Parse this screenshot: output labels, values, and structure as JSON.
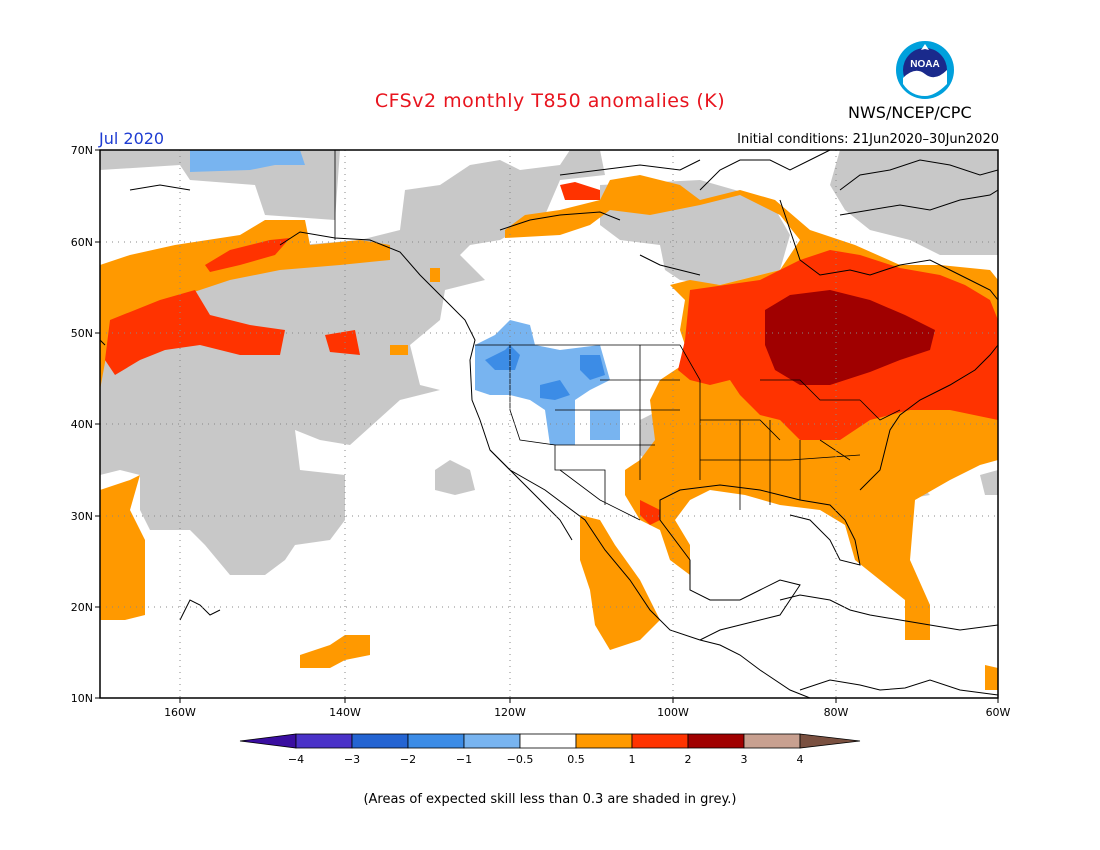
{
  "title": "CFSv2 monthly T850 anomalies (K)",
  "period": "Jul 2020",
  "initial_conditions": "Initial conditions: 21Jun2020–30Jun2020",
  "agency": "NWS/NCEP/CPC",
  "logo_text": "NOAA",
  "lat_labels": [
    "70N",
    "60N",
    "50N",
    "40N",
    "30N",
    "20N",
    "10N"
  ],
  "lon_labels": [
    "160W",
    "140W",
    "120W",
    "100W",
    "80W",
    "60W"
  ],
  "colorbar": {
    "labels": [
      "−4",
      "−3",
      "−2",
      "−1",
      "−0.5",
      "0.5",
      "1",
      "2",
      "3",
      "4"
    ],
    "colors": [
      "#3a0ea0",
      "#4a32c8",
      "#2464d2",
      "#3c8ce6",
      "#78b4f0",
      "#ffffff",
      "#ff9900",
      "#ff3300",
      "#a00000",
      "#c8a090",
      "#7a5040"
    ],
    "grey_color": "#c8c8c8"
  },
  "note": "(Areas of expected skill less than 0.3 are shaded in grey.)"
}
